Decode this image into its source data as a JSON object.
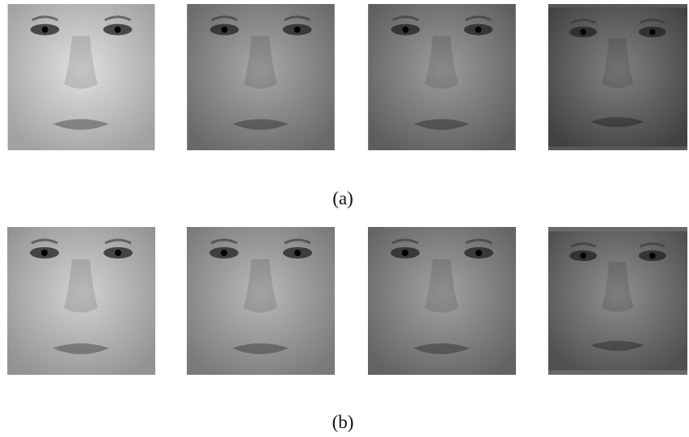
{
  "figure": {
    "captions": [
      "(a)",
      "(b)"
    ]
  }
}
